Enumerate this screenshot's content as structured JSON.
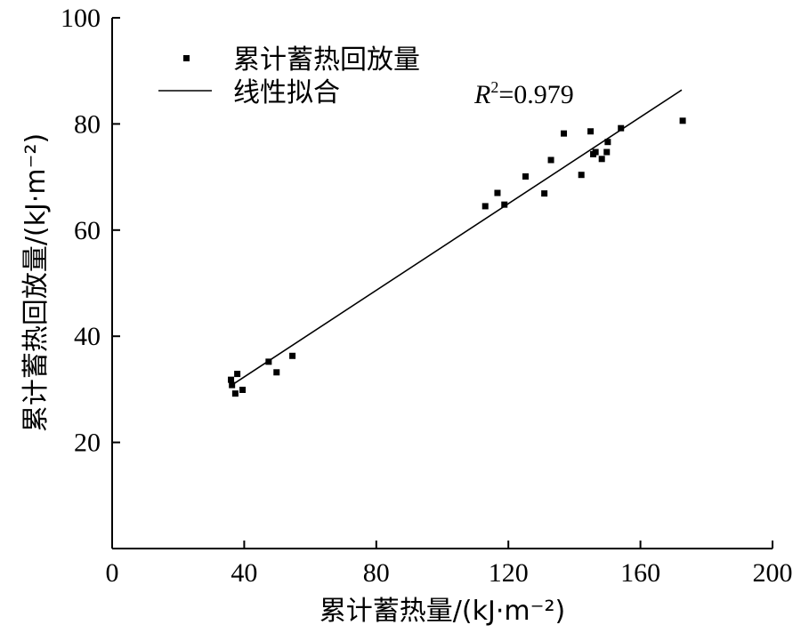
{
  "chart_data": {
    "type": "scatter",
    "xlabel": "累计蓄热量/(kJ·m⁻²)",
    "ylabel": "累计蓄热回放量/(kJ·m⁻²)",
    "xlim": [
      0,
      200
    ],
    "ylim": [
      0,
      100
    ],
    "xticks": [
      "0",
      "40",
      "80",
      "120",
      "160",
      "200"
    ],
    "yticks": [
      "20",
      "40",
      "60",
      "80",
      "100"
    ],
    "grid": false,
    "legend_position": "top-left",
    "series": [
      {
        "name": "累计蓄热回放量",
        "kind": "scatter",
        "marker": "square",
        "color": "#000000",
        "points": [
          [
            36.0,
            31.8
          ],
          [
            36.3,
            30.8
          ],
          [
            37.3,
            29.2
          ],
          [
            37.9,
            32.9
          ],
          [
            39.5,
            29.9
          ],
          [
            47.4,
            35.2
          ],
          [
            49.8,
            33.2
          ],
          [
            54.6,
            36.3
          ],
          [
            113.0,
            64.5
          ],
          [
            116.7,
            67.0
          ],
          [
            118.8,
            64.8
          ],
          [
            125.2,
            70.1
          ],
          [
            130.9,
            66.9
          ],
          [
            132.9,
            73.2
          ],
          [
            136.8,
            78.2
          ],
          [
            142.1,
            70.4
          ],
          [
            144.9,
            78.6
          ],
          [
            145.7,
            74.3
          ],
          [
            146.4,
            74.7
          ],
          [
            148.3,
            73.4
          ],
          [
            149.8,
            74.7
          ],
          [
            150.1,
            76.6
          ],
          [
            154.1,
            79.2
          ],
          [
            172.8,
            80.6
          ]
        ]
      },
      {
        "name": "线性拟合",
        "kind": "line",
        "color": "#000000",
        "x": [
          35.5,
          172.5
        ],
        "y": [
          30.5,
          86.4
        ]
      }
    ],
    "annotation": {
      "r_symbol": "R",
      "superscript": "2",
      "value_text": "=0.979"
    }
  }
}
